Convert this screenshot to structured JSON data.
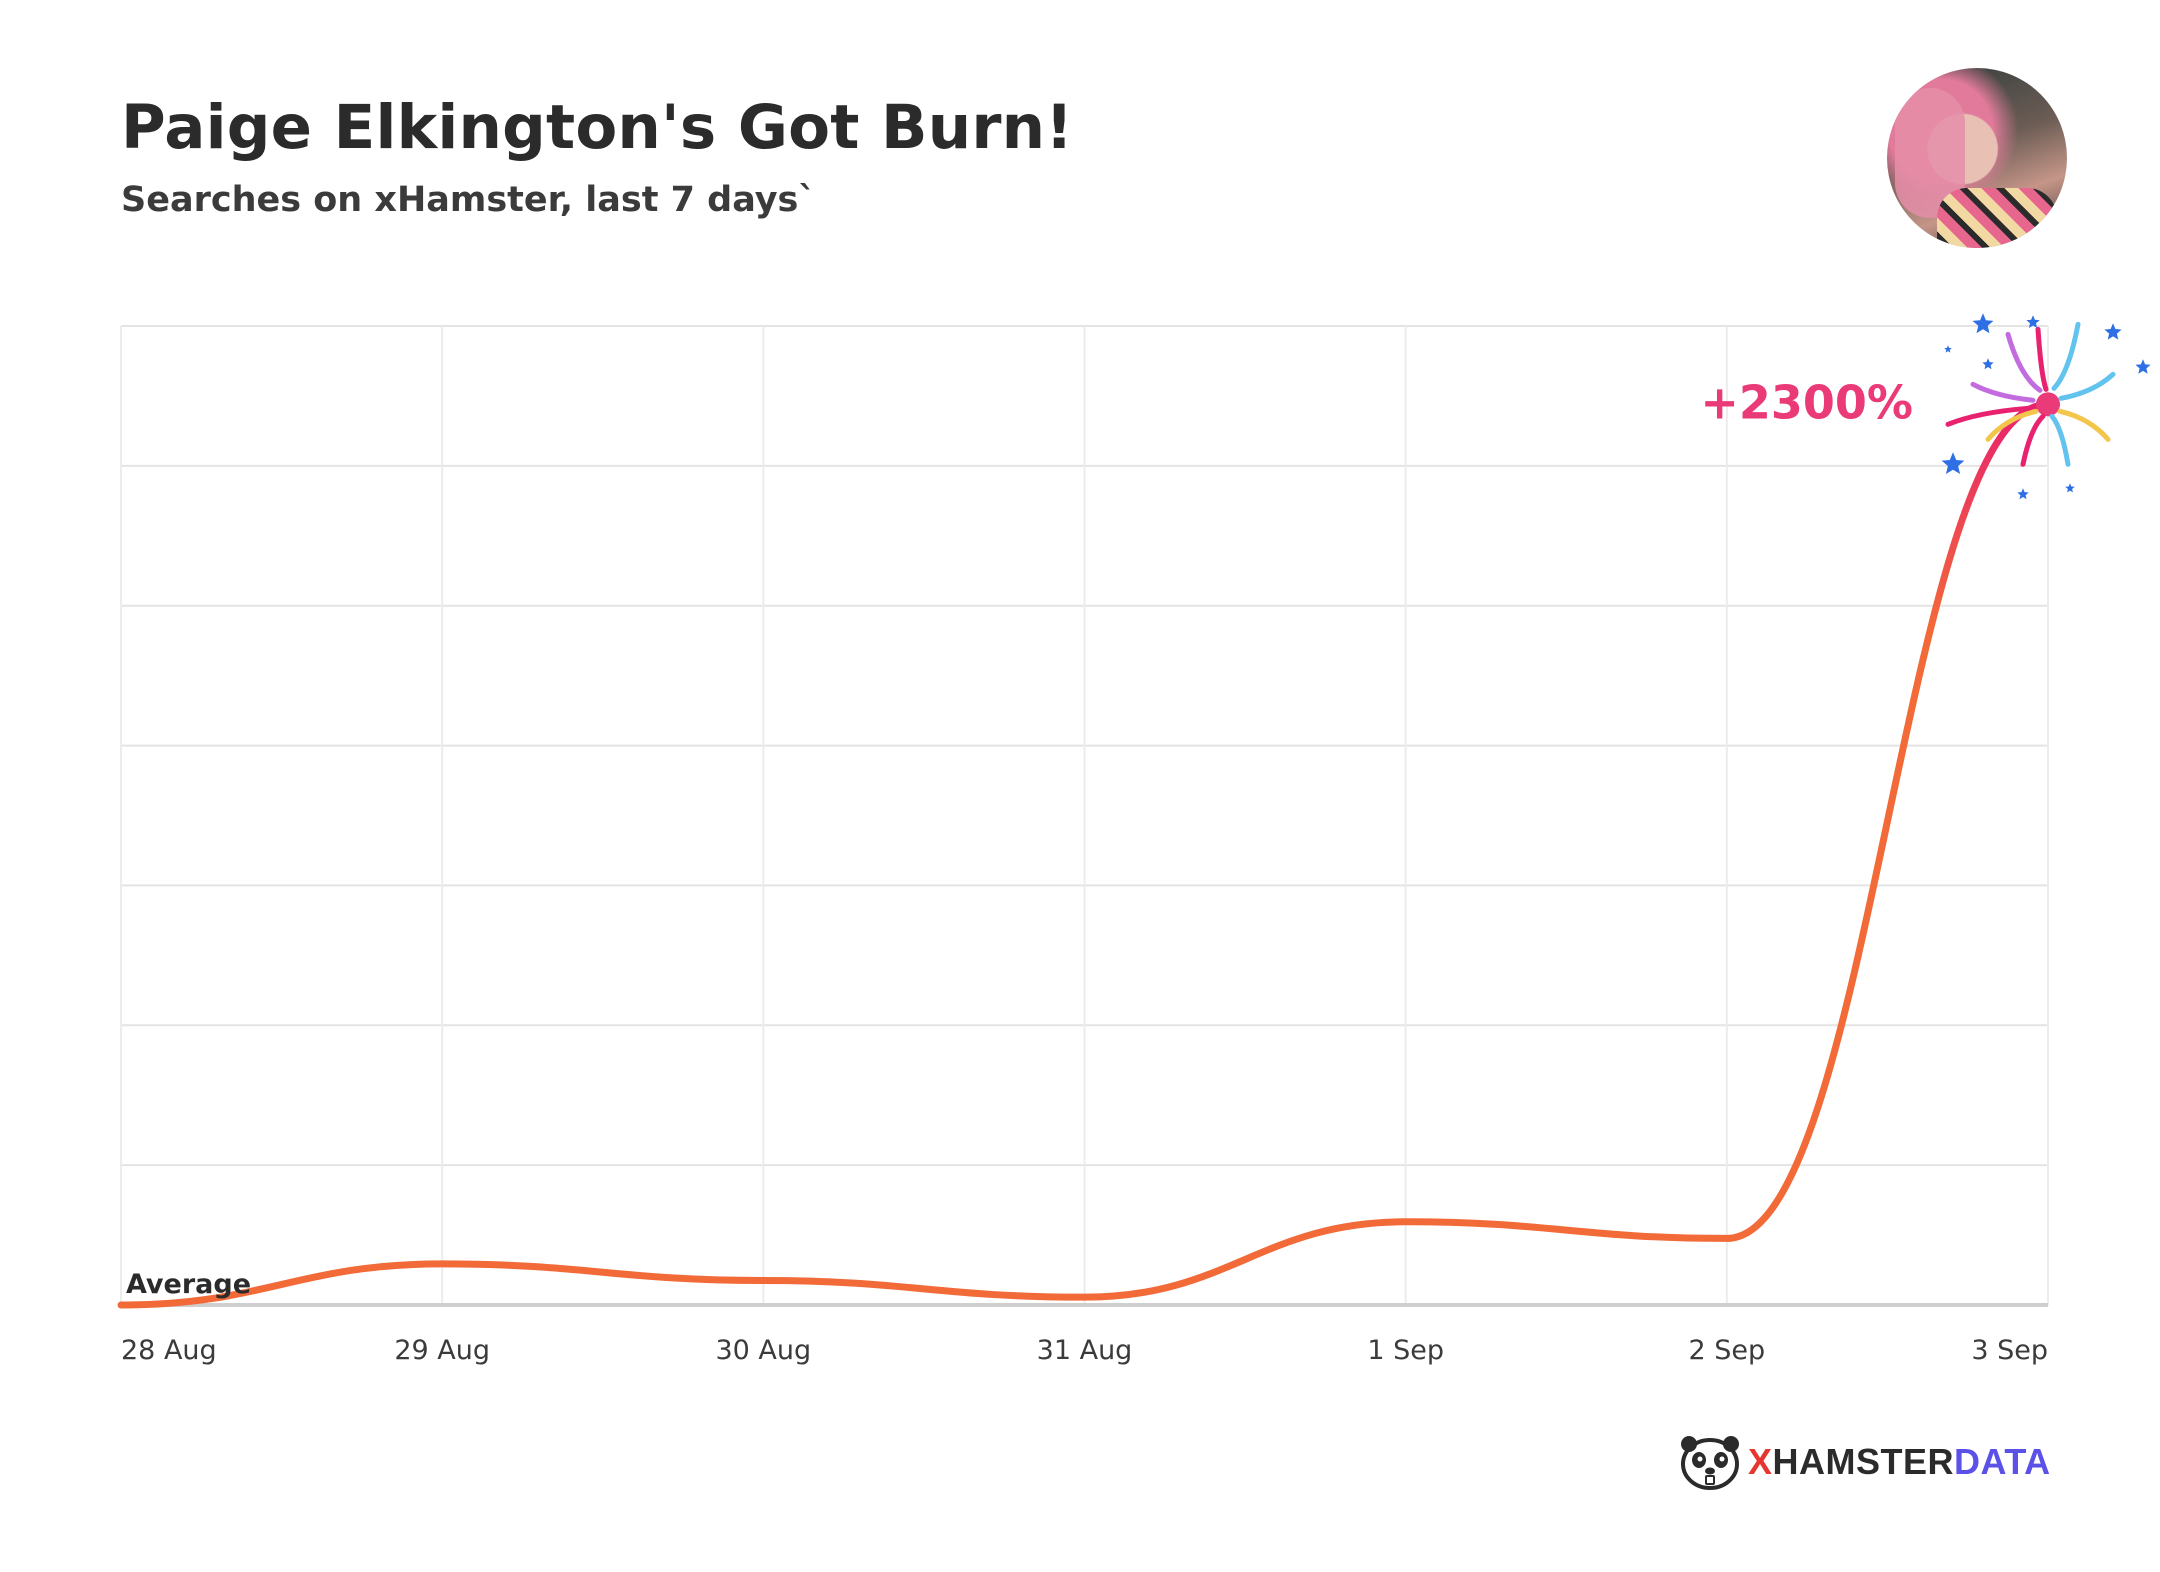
{
  "title": "Paige Elkington's Got Burn!",
  "subtitle": "Searches on xHamster, last 7 days`",
  "avatar_icon": "person-photo",
  "brand": {
    "part1": "X",
    "part2": "HAMSTER",
    "part3": "DATA",
    "icon": "hamster-face-icon"
  },
  "colors": {
    "line_start": "#f26a38",
    "line_end": "#e8226e",
    "highlight": "#ea3a78",
    "brand_x": "#e5362f",
    "brand_data": "#5b50e8",
    "text": "#2b2b2b"
  },
  "chart_data": {
    "type": "line",
    "x": [
      "28 Aug",
      "29 Aug",
      "30 Aug",
      "31 Aug",
      "1 Sep",
      "2 Sep",
      "3 Sep"
    ],
    "series": [
      {
        "values": [
          0,
          4.2,
          2.5,
          0.8,
          8.5,
          6.8,
          92
        ]
      }
    ],
    "annotations": {
      "baseline_label": "Average",
      "peak_label": "+2300%"
    },
    "ylim": [
      0,
      100
    ],
    "grid": true,
    "legend": "none"
  }
}
